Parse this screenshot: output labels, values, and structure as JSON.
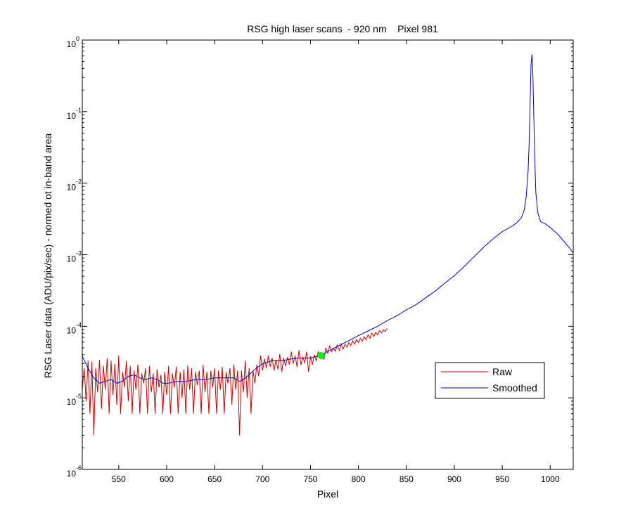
{
  "chart_data": {
    "type": "line",
    "title": "RSG high laser scans  - 920 nm    Pixel 981",
    "xlabel": "Pixel",
    "ylabel": "RSG Laser data (ADU/pix/sec) - normed ot in-band area",
    "xlim": [
      512,
      1024
    ],
    "ylim": [
      1e-06,
      1
    ],
    "yscale": "log",
    "grid": false,
    "legend_position": "lower-right",
    "x_ticks": [
      550,
      600,
      650,
      700,
      750,
      800,
      850,
      900,
      950,
      1000
    ],
    "y_ticks": [
      {
        "value": 1,
        "base": "10",
        "exp": "0"
      },
      {
        "value": 0.1,
        "base": "10",
        "exp": "-1"
      },
      {
        "value": 0.01,
        "base": "10",
        "exp": "-2"
      },
      {
        "value": 0.001,
        "base": "10",
        "exp": "-3"
      },
      {
        "value": 0.0001,
        "base": "10",
        "exp": "-4"
      },
      {
        "value": 1e-05,
        "base": "10",
        "exp": "-5"
      },
      {
        "value": 1e-06,
        "base": "10",
        "exp": "-6"
      }
    ],
    "series": [
      {
        "name": "Raw",
        "color": "#cc0000",
        "x": [
          512,
          514,
          516,
          518,
          520,
          522,
          524,
          526,
          528,
          530,
          532,
          534,
          536,
          538,
          540,
          542,
          544,
          546,
          548,
          550,
          552,
          554,
          556,
          558,
          560,
          562,
          564,
          566,
          568,
          570,
          572,
          574,
          576,
          578,
          580,
          582,
          584,
          586,
          588,
          590,
          592,
          594,
          596,
          598,
          600,
          602,
          604,
          606,
          608,
          610,
          612,
          614,
          616,
          618,
          620,
          622,
          624,
          626,
          628,
          630,
          632,
          634,
          636,
          638,
          640,
          642,
          644,
          646,
          648,
          650,
          652,
          654,
          656,
          658,
          660,
          662,
          664,
          666,
          668,
          670,
          672,
          674,
          676,
          678,
          680,
          682,
          684,
          686,
          688,
          690,
          692,
          694,
          696,
          698,
          700,
          702,
          704,
          706,
          708,
          710,
          712,
          714,
          716,
          718,
          720,
          722,
          724,
          726,
          728,
          730,
          732,
          734,
          736,
          738,
          740,
          742,
          744,
          746,
          748,
          750,
          752,
          754,
          756,
          758,
          760,
          762,
          764,
          766,
          768,
          770,
          772,
          774,
          776,
          778,
          780,
          782,
          784,
          786,
          788,
          790,
          792,
          794,
          796,
          798,
          800,
          802,
          804,
          806,
          808,
          810,
          812,
          814,
          816,
          818,
          820,
          822,
          824,
          826,
          828,
          830
        ],
        "y": [
          1.3e-05,
          2.6e-05,
          9e-06,
          3.3e-05,
          6e-06,
          3.2e-05,
          3e-06,
          2.6e-05,
          1.2e-05,
          3.4e-05,
          7e-06,
          2.8e-05,
          1.3e-05,
          3.6e-05,
          6e-06,
          3.3e-05,
          1.1e-05,
          3e-05,
          8e-06,
          3.9e-05,
          6e-06,
          2.3e-05,
          1.4e-05,
          3.3e-05,
          9e-06,
          2.8e-05,
          6e-06,
          2.4e-05,
          1.3e-05,
          2.9e-05,
          6e-06,
          2.2e-05,
          1.6e-05,
          2.6e-05,
          6e-06,
          2.8e-05,
          1.2e-05,
          2.2e-05,
          6e-06,
          2.5e-05,
          1.4e-05,
          2.1e-05,
          6e-06,
          2.3e-05,
          1.1e-05,
          2.8e-05,
          6e-06,
          2.2e-05,
          1.4e-05,
          2.7e-05,
          6e-06,
          2.3e-05,
          1e-05,
          2.5e-05,
          6e-06,
          2.8e-05,
          1.3e-05,
          2.6e-05,
          6e-06,
          2.3e-05,
          1.5e-05,
          2.4e-05,
          6e-06,
          2.9e-05,
          1.2e-05,
          2.3e-05,
          6e-06,
          2.4e-05,
          1.4e-05,
          2.6e-05,
          6e-06,
          2.4e-05,
          1.3e-05,
          2.7e-05,
          6e-06,
          2.3e-05,
          1.6e-05,
          2.6e-05,
          8e-06,
          2.9e-05,
          1.3e-05,
          2.4e-05,
          3e-06,
          2.4e-05,
          1.2e-05,
          3.3e-05,
          1e-05,
          2.6e-05,
          6e-06,
          2.4e-05,
          1.6e-05,
          2.9e-05,
          2e-05,
          3.9e-05,
          2.4e-05,
          3.5e-05,
          2.6e-05,
          3.9e-05,
          2.7e-05,
          3.6e-05,
          2.4e-05,
          3.4e-05,
          2.5e-05,
          4.1e-05,
          2.3e-05,
          3.6e-05,
          2.8e-05,
          3.7e-05,
          2.9e-05,
          4.4e-05,
          3e-05,
          3.9e-05,
          2.7e-05,
          4.6e-05,
          2.9e-05,
          3.7e-05,
          3.1e-05,
          4.4e-05,
          2.3e-05,
          3.8e-05,
          2.9e-05,
          4e-05,
          3.3e-05,
          4.4e-05,
          3.6e-05,
          4.2e-05,
          3.4e-05,
          5e-05,
          4.2e-05,
          5.3e-05,
          4.4e-05,
          4.9e-05,
          4.5e-05,
          5.5e-05,
          4.6e-05,
          5.7e-05,
          4.8e-05,
          5.6e-05,
          5.1e-05,
          5.9e-05,
          5.4e-05,
          6.3e-05,
          5.6e-05,
          6.5e-05,
          5.9e-05,
          6.8e-05,
          6.2e-05,
          7.1e-05,
          6.5e-05,
          7.6e-05,
          6.8e-05,
          8e-05,
          7.2e-05,
          8.2e-05,
          7.6e-05,
          8.7e-05,
          8.1e-05,
          8.9e-05,
          8.5e-05,
          9.3e-05
        ]
      },
      {
        "name": "Smoothed",
        "color": "#0000cc",
        "x": [
          512,
          518,
          524,
          530,
          536,
          542,
          548,
          554,
          560,
          566,
          572,
          578,
          584,
          590,
          596,
          602,
          610,
          620,
          630,
          640,
          650,
          660,
          670,
          676,
          680,
          686,
          692,
          700,
          710,
          720,
          730,
          740,
          750,
          756,
          760,
          770,
          780,
          790,
          800,
          810,
          820,
          830,
          840,
          850,
          860,
          870,
          880,
          890,
          900,
          910,
          920,
          930,
          940,
          950,
          960,
          965,
          970,
          973,
          975,
          977,
          978,
          979,
          980,
          981,
          982,
          983,
          984,
          985,
          987,
          990,
          995,
          1000,
          1005,
          1010,
          1015,
          1020,
          1024
        ],
        "y": [
          3.8e-05,
          2.6e-05,
          1.9e-05,
          1.6e-05,
          1.7e-05,
          1.8e-05,
          1.6e-05,
          1.7e-05,
          2e-05,
          2.1e-05,
          1.9e-05,
          1.8e-05,
          1.9e-05,
          1.8e-05,
          1.6e-05,
          1.6e-05,
          1.7e-05,
          1.7e-05,
          1.8e-05,
          1.8e-05,
          1.9e-05,
          1.9e-05,
          1.9e-05,
          1.7e-05,
          1.8e-05,
          2.1e-05,
          2.5e-05,
          3e-05,
          3.3e-05,
          3.3e-05,
          3.5e-05,
          3.6e-05,
          3.6e-05,
          3.8e-05,
          3.9e-05,
          4.6e-05,
          5.4e-05,
          6.3e-05,
          7.4e-05,
          8.6e-05,
          0.0001,
          0.00012,
          0.00014,
          0.00017,
          0.0002,
          0.00025,
          0.00031,
          0.0004,
          0.00051,
          0.00068,
          0.00092,
          0.00125,
          0.00165,
          0.0021,
          0.0025,
          0.0028,
          0.0033,
          0.0043,
          0.0065,
          0.015,
          0.035,
          0.13,
          0.45,
          0.63,
          0.32,
          0.075,
          0.02,
          0.0075,
          0.0039,
          0.0029,
          0.0027,
          0.0024,
          0.0021,
          0.0018,
          0.0015,
          0.00125,
          0.00105
        ]
      }
    ],
    "markers": [
      {
        "x": 761,
        "y": 3.9e-05,
        "color": "#00ee00"
      }
    ]
  }
}
